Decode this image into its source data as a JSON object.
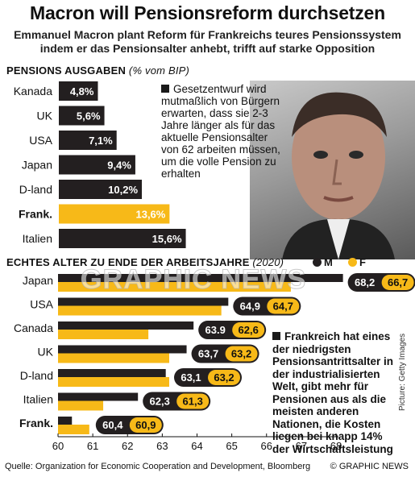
{
  "title": "Macron will Pensionsreform durchsetzen",
  "subtitle": "Emmanuel Macron plant Reform für Frankreichs teures Pensionssystem indem er das Pensionsalter anhebt, trifft auf starke Opposition",
  "section1": {
    "heading": "PENSIONS AUSGABEN",
    "unit": "(% vom BIP)"
  },
  "section2": {
    "heading": "ECHTES ALTER ZU ENDE DER ARBEITSJAHRE",
    "unit": "(2020)"
  },
  "note1": "Gesetzentwurf wird mutmaßlich von Bürgern erwarten, dass sie 2-3 Jahre länger als für das aktuelle Pensionsalter von 62 arbeiten müssen, um die volle Pension zu erhalten",
  "note2": "Frankreich hat eines der niedrigsten Pensionsantrittsalter in der industrialisierten Welt, gibt mehr für Pensionen aus als die meisten anderen Nationen, die Kosten liegen bei knapp 14% der Wirtschaftsleistung",
  "legend": {
    "m": "M",
    "f": "F"
  },
  "watermark": "GRAPHIC NEWS",
  "source": "Quelle: Organization for Economic Cooperation and Development, Bloomberg",
  "credit": "© GRAPHIC NEWS",
  "picture_credit": "Picture: Getty Images",
  "colors": {
    "dark": "#231f20",
    "yellow": "#f7b918",
    "white": "#ffffff"
  },
  "chart_data": [
    {
      "type": "bar",
      "title": "PENSIONS AUSGABEN",
      "unit": "% vom BIP",
      "categories": [
        "Kanada",
        "UK",
        "USA",
        "Japan",
        "D-land",
        "Frank.",
        "Italien"
      ],
      "values": [
        4.8,
        5.6,
        7.1,
        9.4,
        10.2,
        13.6,
        15.6
      ],
      "labels": [
        "4,8%",
        "5,6%",
        "7,1%",
        "9,4%",
        "10,2%",
        "13,6%",
        "15,6%"
      ],
      "highlight": "Frank."
    },
    {
      "type": "bar",
      "title": "ECHTES ALTER ZU ENDE DER ARBEITSJAHRE",
      "year": "2020",
      "categories": [
        "Japan",
        "USA",
        "Canada",
        "UK",
        "D-land",
        "Italien",
        "Frank."
      ],
      "series": [
        {
          "name": "M",
          "values": [
            68.2,
            64.9,
            63.9,
            63.7,
            63.1,
            62.3,
            60.4
          ],
          "labels": [
            "68,2",
            "64,9",
            "63.9",
            "63,7",
            "63,1",
            "62,3",
            "60,4"
          ]
        },
        {
          "name": "F",
          "values": [
            66.7,
            64.7,
            62.6,
            63.2,
            63.2,
            61.3,
            60.9
          ],
          "labels": [
            "66,7",
            "64,7",
            "62,6",
            "63,2",
            "63,2",
            "61,3",
            "60,9"
          ]
        }
      ],
      "xlim": [
        60,
        69
      ],
      "xticks": [
        "60",
        "61",
        "62",
        "63",
        "64",
        "65",
        "66",
        "67",
        "68"
      ],
      "highlight": "Frank."
    }
  ]
}
